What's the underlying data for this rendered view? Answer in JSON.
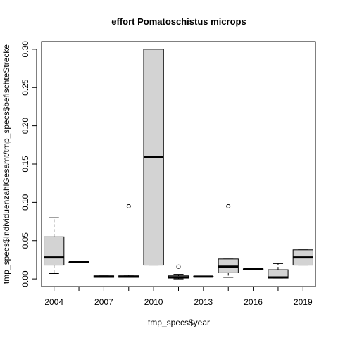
{
  "chart_data": {
    "type": "boxplot",
    "title": "effort Pomatoschistus microps",
    "xlabel": "tmp_specs$year",
    "ylabel": "tmp_specs$IndividuenzahlGesamt/tmp_specs$befischteStrecke",
    "ylim": [
      -0.01,
      0.31
    ],
    "yticks": [
      0.0,
      0.05,
      0.1,
      0.15,
      0.2,
      0.25,
      0.3
    ],
    "ytick_labels": [
      "0.00",
      "0.05",
      "0.10",
      "0.15",
      "0.20",
      "0.25",
      "0.30"
    ],
    "x_tick_labels": [
      "2004",
      "2007",
      "2010",
      "2013",
      "2016",
      "2019"
    ],
    "x_tick_positions": [
      1,
      3,
      5,
      7,
      9,
      11
    ],
    "n_groups": 11,
    "grid": false,
    "box_fill": "#d3d3d3",
    "boxes": [
      {
        "position": 1,
        "whislo": 0.007,
        "q1": 0.018,
        "med": 0.028,
        "q3": 0.055,
        "whishi": 0.08,
        "fliers": []
      },
      {
        "position": 2,
        "whislo": 0.022,
        "q1": 0.022,
        "med": 0.022,
        "q3": 0.022,
        "whishi": 0.022,
        "fliers": []
      },
      {
        "position": 3,
        "whislo": 0.002,
        "q1": 0.002,
        "med": 0.003,
        "q3": 0.004,
        "whishi": 0.005,
        "fliers": []
      },
      {
        "position": 4,
        "whislo": 0.002,
        "q1": 0.002,
        "med": 0.003,
        "q3": 0.004,
        "whishi": 0.005,
        "fliers": [
          0.095
        ]
      },
      {
        "position": 5,
        "whislo": 0.018,
        "q1": 0.018,
        "med": 0.159,
        "q3": 0.3,
        "whishi": 0.3,
        "fliers": []
      },
      {
        "position": 6,
        "whislo": 0.0,
        "q1": 0.001,
        "med": 0.002,
        "q3": 0.004,
        "whishi": 0.006,
        "fliers": [
          0.016
        ]
      },
      {
        "position": 7,
        "whislo": 0.003,
        "q1": 0.003,
        "med": 0.003,
        "q3": 0.003,
        "whishi": 0.003,
        "fliers": []
      },
      {
        "position": 8,
        "whislo": 0.002,
        "q1": 0.008,
        "med": 0.016,
        "q3": 0.026,
        "whishi": 0.026,
        "fliers": [
          0.095
        ]
      },
      {
        "position": 9,
        "whislo": 0.013,
        "q1": 0.013,
        "med": 0.013,
        "q3": 0.013,
        "whishi": 0.013,
        "fliers": []
      },
      {
        "position": 10,
        "whislo": 0.001,
        "q1": 0.001,
        "med": 0.002,
        "q3": 0.012,
        "whishi": 0.02,
        "fliers": []
      },
      {
        "position": 11,
        "whislo": 0.018,
        "q1": 0.018,
        "med": 0.028,
        "q3": 0.038,
        "whishi": 0.038,
        "fliers": []
      }
    ]
  }
}
